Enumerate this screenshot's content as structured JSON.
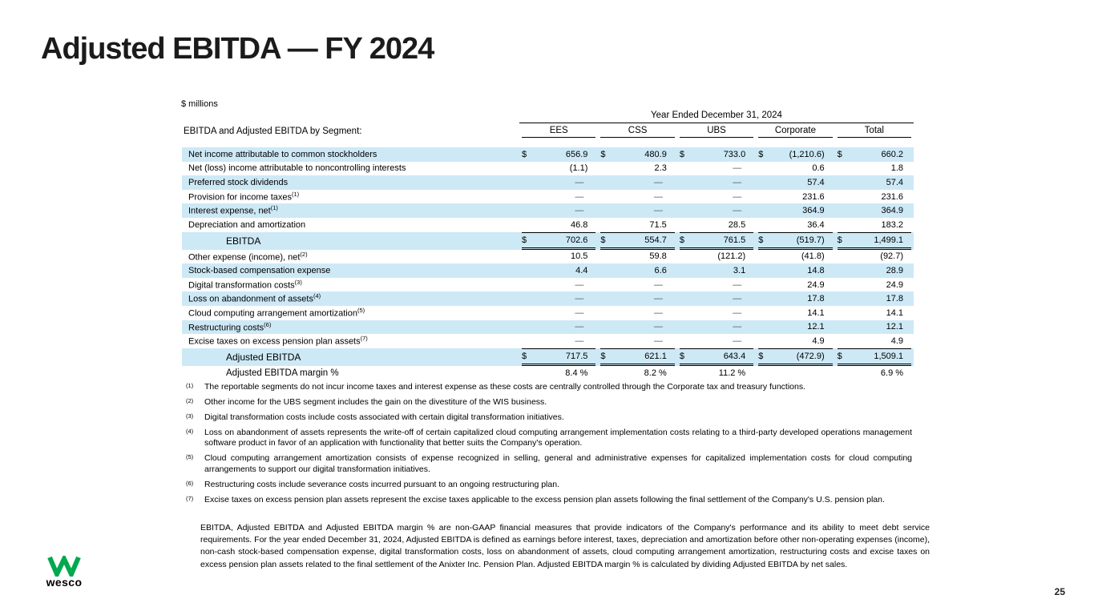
{
  "slide": {
    "title": "Adjusted EBITDA — FY 2024",
    "page_number": "25"
  },
  "logo": {
    "wordmark": "wesco",
    "green": "#00A94E"
  },
  "table": {
    "units_label": "$ millions",
    "period_header": "Year Ended December 31, 2024",
    "left_header": "EBITDA and Adjusted EBITDA by Segment:",
    "columns": [
      "EES",
      "CSS",
      "UBS",
      "Corporate",
      "Total"
    ],
    "shade_color": "#cde9f6",
    "rows": [
      {
        "label": "Net income attributable to common stockholders",
        "sup": "",
        "dollar": true,
        "shaded": true,
        "total": false,
        "indent": false,
        "values": [
          "656.9",
          "480.9",
          "733.0",
          "(1,210.6)",
          "660.2"
        ]
      },
      {
        "label": "Net (loss) income attributable to noncontrolling interests",
        "sup": "",
        "dollar": false,
        "shaded": false,
        "total": false,
        "indent": false,
        "values": [
          "(1.1)",
          "2.3",
          "—",
          "0.6",
          "1.8"
        ]
      },
      {
        "label": "Preferred stock dividends",
        "sup": "",
        "dollar": false,
        "shaded": true,
        "total": false,
        "indent": false,
        "values": [
          "—",
          "—",
          "—",
          "57.4",
          "57.4"
        ]
      },
      {
        "label": "Provision for income taxes",
        "sup": "(1)",
        "dollar": false,
        "shaded": false,
        "total": false,
        "indent": false,
        "values": [
          "—",
          "—",
          "—",
          "231.6",
          "231.6"
        ]
      },
      {
        "label": "Interest expense, net",
        "sup": "(1)",
        "dollar": false,
        "shaded": true,
        "total": false,
        "indent": false,
        "values": [
          "—",
          "—",
          "—",
          "364.9",
          "364.9"
        ]
      },
      {
        "label": "Depreciation and amortization",
        "sup": "",
        "dollar": false,
        "shaded": false,
        "total": false,
        "indent": false,
        "values": [
          "46.8",
          "71.5",
          "28.5",
          "36.4",
          "183.2"
        ]
      },
      {
        "label": "EBITDA",
        "sup": "",
        "dollar": true,
        "shaded": true,
        "total": true,
        "indent": true,
        "values": [
          "702.6",
          "554.7",
          "761.5",
          "(519.7)",
          "1,499.1"
        ]
      },
      {
        "label": "Other expense (income), net",
        "sup": "(2)",
        "dollar": false,
        "shaded": false,
        "total": false,
        "indent": false,
        "values": [
          "10.5",
          "59.8",
          "(121.2)",
          "(41.8)",
          "(92.7)"
        ]
      },
      {
        "label": "Stock-based compensation expense",
        "sup": "",
        "dollar": false,
        "shaded": true,
        "total": false,
        "indent": false,
        "values": [
          "4.4",
          "6.6",
          "3.1",
          "14.8",
          "28.9"
        ]
      },
      {
        "label": "Digital transformation costs",
        "sup": "(3)",
        "dollar": false,
        "shaded": false,
        "total": false,
        "indent": false,
        "values": [
          "—",
          "—",
          "—",
          "24.9",
          "24.9"
        ]
      },
      {
        "label": "Loss on abandonment of assets",
        "sup": "(4)",
        "dollar": false,
        "shaded": true,
        "total": false,
        "indent": false,
        "values": [
          "—",
          "—",
          "—",
          "17.8",
          "17.8"
        ]
      },
      {
        "label": "Cloud computing arrangement amortization",
        "sup": "(5)",
        "dollar": false,
        "shaded": false,
        "total": false,
        "indent": false,
        "values": [
          "—",
          "—",
          "—",
          "14.1",
          "14.1"
        ]
      },
      {
        "label": "Restructuring costs",
        "sup": "(6)",
        "dollar": false,
        "shaded": true,
        "total": false,
        "indent": false,
        "values": [
          "—",
          "—",
          "—",
          "12.1",
          "12.1"
        ]
      },
      {
        "label": "Excise taxes on excess pension plan assets",
        "sup": "(7)",
        "dollar": false,
        "shaded": false,
        "total": false,
        "indent": false,
        "values": [
          "—",
          "—",
          "—",
          "4.9",
          "4.9"
        ]
      },
      {
        "label": "Adjusted EBITDA",
        "sup": "",
        "dollar": true,
        "shaded": true,
        "total": true,
        "indent": true,
        "values": [
          "717.5",
          "621.1",
          "643.4",
          "(472.9)",
          "1,509.1"
        ]
      },
      {
        "label": "Adjusted EBITDA margin %",
        "sup": "",
        "dollar": false,
        "shaded": false,
        "total": false,
        "indent": true,
        "values": [
          "8.4 %",
          "8.2 %",
          "11.2 %",
          "",
          "6.9 %"
        ]
      }
    ]
  },
  "footnotes": [
    {
      "num": "(1)",
      "text": "The reportable segments do not incur income taxes and interest expense as these costs are centrally controlled through the Corporate tax and treasury functions."
    },
    {
      "num": "(2)",
      "text": "Other income for the UBS segment includes the gain on the divestiture of the WIS business."
    },
    {
      "num": "(3)",
      "text": "Digital transformation costs include costs associated with certain digital transformation initiatives."
    },
    {
      "num": "(4)",
      "text": "Loss on abandonment of assets represents the write-off of certain capitalized cloud computing arrangement implementation costs relating to a third-party developed operations management software product in favor of an application with functionality that better suits the Company's operation."
    },
    {
      "num": "(5)",
      "text": "Cloud computing arrangement amortization consists of expense recognized in selling, general and administrative expenses for capitalized implementation costs for cloud computing arrangements to support our digital transformation initiatives."
    },
    {
      "num": "(6)",
      "text": "Restructuring costs include severance costs incurred pursuant to an ongoing restructuring plan."
    },
    {
      "num": "(7)",
      "text": "Excise taxes on excess pension plan assets represent the excise taxes applicable to the excess pension plan assets following the final settlement of the Company's U.S. pension plan."
    }
  ],
  "disclosure": "EBITDA, Adjusted EBITDA and Adjusted EBITDA margin % are non-GAAP financial measures that provide indicators of the Company's performance and its ability to meet debt service requirements. For the year ended December 31, 2024, Adjusted EBITDA is defined as earnings before interest, taxes, depreciation and amortization before other non-operating expenses (income), non-cash stock-based compensation expense, digital transformation costs, loss on abandonment of assets, cloud computing arrangement amortization, restructuring costs and excise taxes on excess pension plan assets related to the final settlement of the Anixter Inc. Pension Plan. Adjusted EBITDA margin % is calculated by dividing Adjusted EBITDA by net sales."
}
